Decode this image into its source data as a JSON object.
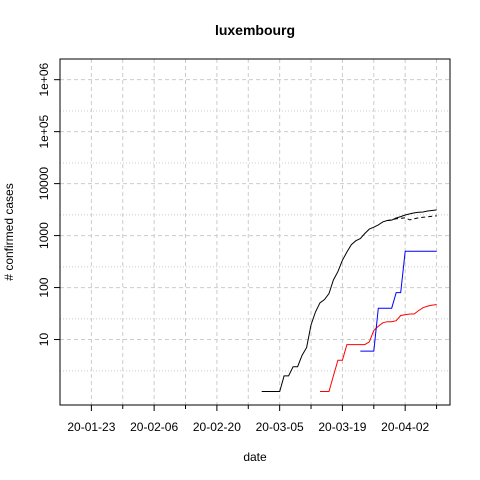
{
  "chart_data": {
    "type": "line",
    "title": "luxembourg",
    "xlabel": "date",
    "ylabel": "# confirmed cases",
    "y_scale": "log",
    "grid": true,
    "x_tick_labels": [
      "20-01-23",
      "20-02-06",
      "20-02-20",
      "20-03-05",
      "20-03-19",
      "20-04-02"
    ],
    "x_tick_days": [
      0,
      14,
      28,
      42,
      56,
      70
    ],
    "x_minor_tick_days": [
      7,
      21,
      35,
      49,
      63,
      77
    ],
    "y_ticks": [
      10,
      100,
      1000,
      10000,
      100000,
      1000000
    ],
    "y_tick_labels": [
      "10",
      "100",
      "1000",
      "10000",
      "1e+05",
      "1e+06"
    ],
    "ylim": [
      0.55,
      2500000
    ],
    "xlim_days": [
      -7,
      80
    ],
    "series": [
      {
        "color": "#000000",
        "dash": "solid",
        "points": [
          [
            38,
            1
          ],
          [
            41,
            1
          ],
          [
            42,
            1
          ],
          [
            43,
            2
          ],
          [
            44,
            2
          ],
          [
            45,
            3
          ],
          [
            46,
            3
          ],
          [
            47,
            5
          ],
          [
            48,
            7
          ],
          [
            49,
            19
          ],
          [
            50,
            34
          ],
          [
            51,
            51
          ],
          [
            52,
            59
          ],
          [
            53,
            77
          ],
          [
            54,
            140
          ],
          [
            55,
            203
          ],
          [
            56,
            335
          ],
          [
            57,
            484
          ],
          [
            58,
            670
          ],
          [
            59,
            798
          ],
          [
            60,
            875
          ],
          [
            61,
            1099
          ],
          [
            62,
            1333
          ],
          [
            63,
            1453
          ],
          [
            64,
            1605
          ],
          [
            65,
            1831
          ],
          [
            66,
            1950
          ],
          [
            67,
            1988
          ],
          [
            68,
            2178
          ],
          [
            69,
            2319
          ],
          [
            70,
            2487
          ],
          [
            71,
            2612
          ],
          [
            72,
            2729
          ],
          [
            73,
            2804
          ],
          [
            74,
            2843
          ],
          [
            75,
            2970
          ],
          [
            76,
            3034
          ],
          [
            77,
            3115
          ]
        ]
      },
      {
        "color": "#000000",
        "dash": "dashed",
        "points": [
          [
            66,
            1950
          ],
          [
            67,
            2000
          ],
          [
            68,
            2100
          ],
          [
            69,
            2150
          ],
          [
            70,
            2200
          ],
          [
            71,
            2000
          ],
          [
            72,
            2100
          ],
          [
            73,
            2200
          ],
          [
            74,
            2250
          ],
          [
            75,
            2300
          ],
          [
            76,
            2350
          ],
          [
            77,
            2400
          ]
        ]
      },
      {
        "color": "#ff0000",
        "dash": "solid",
        "points": [
          [
            51,
            1
          ],
          [
            52,
            1
          ],
          [
            53,
            1
          ],
          [
            54,
            2
          ],
          [
            55,
            4
          ],
          [
            56,
            4
          ],
          [
            57,
            8
          ],
          [
            58,
            8
          ],
          [
            59,
            8
          ],
          [
            60,
            8
          ],
          [
            61,
            8
          ],
          [
            62,
            9
          ],
          [
            63,
            15
          ],
          [
            64,
            18
          ],
          [
            65,
            21
          ],
          [
            66,
            22
          ],
          [
            67,
            22
          ],
          [
            68,
            23
          ],
          [
            69,
            29
          ],
          [
            70,
            30
          ],
          [
            71,
            31
          ],
          [
            72,
            31
          ],
          [
            73,
            36
          ],
          [
            74,
            41
          ],
          [
            75,
            44
          ],
          [
            76,
            46
          ],
          [
            77,
            47
          ]
        ]
      },
      {
        "color": "#0000ff",
        "dash": "solid",
        "points": [
          [
            60,
            6
          ],
          [
            61,
            6
          ],
          [
            62,
            6
          ],
          [
            63,
            6
          ],
          [
            64,
            40
          ],
          [
            65,
            40
          ],
          [
            66,
            40
          ],
          [
            67,
            40
          ],
          [
            68,
            80
          ],
          [
            69,
            80
          ],
          [
            70,
            500
          ],
          [
            71,
            500
          ],
          [
            72,
            500
          ],
          [
            73,
            500
          ],
          [
            74,
            500
          ],
          [
            75,
            500
          ],
          [
            76,
            500
          ],
          [
            77,
            500
          ]
        ]
      }
    ]
  }
}
